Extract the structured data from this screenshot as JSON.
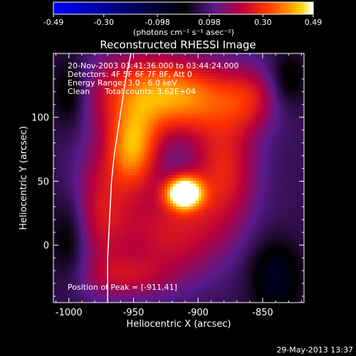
{
  "colorbar": {
    "ticks": [
      "-0.49",
      "-0.30",
      "-0.098",
      "0.098",
      "0.30",
      "0.49"
    ],
    "units": "(photons cm⁻² s⁻¹ asec⁻²)",
    "range": [
      -0.49,
      0.49
    ]
  },
  "title": "Reconstructed RHESSI Image",
  "annotations": {
    "line1": "20-Nov-2003 03:41:36.000 to 03:44:24.000",
    "line2": "Detectors: 4F 5F 6F 7F 8F, Att 0",
    "line3": "Energy Range: 3.0 - 6.0 keV",
    "line4": "Clean      Total counts: 3.62E+04",
    "peak": "Position of Peak = [-911,41]"
  },
  "footer": {
    "timestamp": "29-May-2013 13:37"
  },
  "chart_data": {
    "type": "heatmap",
    "title": "Reconstructed RHESSI Image",
    "xlabel": "Heliocentric X (arcsec)",
    "ylabel": "Heliocentric Y (arcsec)",
    "xlim": [
      -1012,
      -818
    ],
    "ylim": [
      -45,
      150
    ],
    "x_ticks": [
      "-1000",
      "-950",
      "-900",
      "-850"
    ],
    "x_tick_values": [
      -1000,
      -950,
      -900,
      -850
    ],
    "y_ticks": [
      "0",
      "50",
      "100"
    ],
    "y_tick_values": [
      0,
      50,
      100
    ],
    "colormap": [
      "#0000ff",
      "#000000",
      "#5a1a8c",
      "#b8003c",
      "#ff3300",
      "#ff8c00",
      "#ffd000",
      "#ffffff"
    ],
    "peak": {
      "x": -911,
      "y": 41
    },
    "limb_curve": [
      [
        -952,
        150
      ],
      [
        -956,
        130
      ],
      [
        -959,
        110
      ],
      [
        -962,
        90
      ],
      [
        -965,
        70
      ],
      [
        -967,
        50
      ],
      [
        -968,
        30
      ],
      [
        -969,
        10
      ],
      [
        -970,
        -10
      ],
      [
        -970,
        -30
      ],
      [
        -970,
        -45
      ]
    ],
    "sources": [
      {
        "x": -911,
        "y": 41,
        "sx": 10,
        "sy": 9,
        "amp": 0.49
      },
      {
        "x": -950,
        "y": 75,
        "sx": 14,
        "sy": 22,
        "amp": 0.3
      },
      {
        "x": -945,
        "y": 120,
        "sx": 30,
        "sy": 22,
        "amp": 0.22
      },
      {
        "x": -905,
        "y": 115,
        "sx": 28,
        "sy": 20,
        "amp": 0.22
      },
      {
        "x": -880,
        "y": 60,
        "sx": 18,
        "sy": 30,
        "amp": 0.2
      },
      {
        "x": -920,
        "y": 10,
        "sx": 30,
        "sy": 25,
        "amp": 0.18
      },
      {
        "x": -975,
        "y": 30,
        "sx": 16,
        "sy": 35,
        "amp": 0.16
      },
      {
        "x": -860,
        "y": 115,
        "sx": 16,
        "sy": 18,
        "amp": 0.14
      },
      {
        "x": -955,
        "y": -25,
        "sx": 25,
        "sy": 12,
        "amp": 0.12
      },
      {
        "x": -1000,
        "y": 120,
        "sx": 10,
        "sy": 20,
        "amp": -0.12
      },
      {
        "x": -830,
        "y": 130,
        "sx": 10,
        "sy": 15,
        "amp": -0.1
      },
      {
        "x": -840,
        "y": -25,
        "sx": 14,
        "sy": 20,
        "amp": -0.14
      },
      {
        "x": -1000,
        "y": 5,
        "sx": 10,
        "sy": 25,
        "amp": -0.1
      }
    ]
  }
}
